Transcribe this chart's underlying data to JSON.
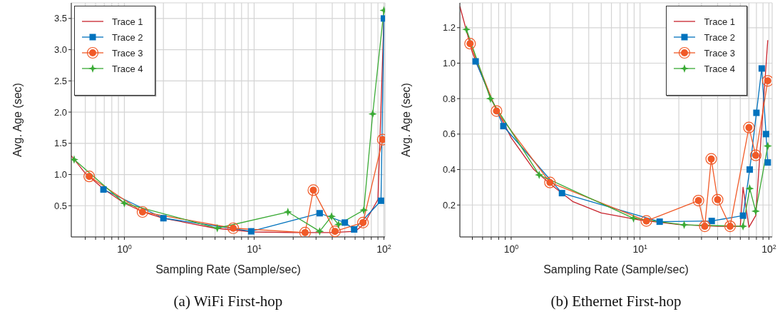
{
  "chart_data": [
    {
      "type": "line",
      "title": "(a) WiFi First-hop",
      "xlabel": "Sampling Rate (Sample/sec)",
      "ylabel": "Avg. Age (sec)",
      "log": "x",
      "grid": true,
      "legend": "top left",
      "xlim": [
        0.39,
        102
      ],
      "ylim": [
        0,
        3.75
      ],
      "xticks": [
        {
          "value": 0.5,
          "label": null
        },
        {
          "value": 0.6,
          "label": null
        },
        {
          "value": 0.7,
          "label": null
        },
        {
          "value": 0.8,
          "label": null
        },
        {
          "value": 0.9,
          "label": null
        },
        {
          "value": 1,
          "label": "10$^{0}$"
        },
        {
          "value": 2,
          "label": null
        },
        {
          "value": 3,
          "label": null
        },
        {
          "value": 4,
          "label": null
        },
        {
          "value": 5,
          "label": null
        },
        {
          "value": 6,
          "label": null
        },
        {
          "value": 7,
          "label": null
        },
        {
          "value": 8,
          "label": null
        },
        {
          "value": 9,
          "label": null
        },
        {
          "value": 10,
          "label": "10$^{1}$"
        },
        {
          "value": 20,
          "label": null
        },
        {
          "value": 30,
          "label": null
        },
        {
          "value": 40,
          "label": null
        },
        {
          "value": 50,
          "label": null
        },
        {
          "value": 60,
          "label": null
        },
        {
          "value": 70,
          "label": null
        },
        {
          "value": 80,
          "label": null
        },
        {
          "value": 90,
          "label": null
        },
        {
          "value": 100,
          "label": "10$^{2}$"
        }
      ],
      "yticks": [
        0.5,
        {
          "value": 1,
          "label": "1.0"
        },
        1.5,
        {
          "value": 2,
          "label": "2.0"
        },
        2.5,
        {
          "value": 3,
          "label": "3.0"
        },
        3.5
      ],
      "series": [
        {
          "name": "Trace 1",
          "color": "#c8232c",
          "marker": "none",
          "x": [
            0.39,
            0.5,
            0.7,
            1,
            1.4,
            2,
            5,
            10,
            20,
            40,
            60,
            70,
            90,
            100
          ],
          "values": [
            1.3,
            1.02,
            0.76,
            0.54,
            0.4,
            0.3,
            0.14,
            0.08,
            0.07,
            0.07,
            0.09,
            0.2,
            0.6,
            3.5
          ]
        },
        {
          "name": "Trace 2",
          "color": "#0072bd",
          "marker": "square",
          "x": [
            0.69,
            2,
            9.5,
            32,
            50,
            59,
            95,
            100
          ],
          "values": [
            0.76,
            0.3,
            0.09,
            0.38,
            0.23,
            0.12,
            0.58,
            3.5
          ]
        },
        {
          "name": "Trace 3",
          "color": "#f05a28",
          "marker": "circle",
          "x": [
            0.536,
            1.38,
            6.9,
            24.7,
            28.6,
            42,
            69,
            98
          ],
          "values": [
            0.97,
            0.4,
            0.14,
            0.07,
            0.75,
            0.09,
            0.23,
            1.56
          ]
        },
        {
          "name": "Trace 4",
          "color": "#3aaa35",
          "marker": "star",
          "x": [
            0.41,
            1,
            5.2,
            18.2,
            32,
            39.5,
            44.7,
            70,
            82,
            100
          ],
          "values": [
            1.24,
            0.54,
            0.14,
            0.4,
            0.09,
            0.33,
            0.2,
            0.43,
            1.97,
            3.63
          ]
        }
      ]
    },
    {
      "type": "line",
      "title": "(b) Ethernet First-hop",
      "xlabel": "Sampling Rate (Sample/sec)",
      "ylabel": "Avg. Age (sec)",
      "log": "x",
      "grid": true,
      "legend": "top right",
      "xlim": [
        0.4,
        106
      ],
      "ylim": [
        0.02,
        1.34
      ],
      "xticks": [
        {
          "value": 0.5,
          "label": null
        },
        {
          "value": 0.6,
          "label": null
        },
        {
          "value": 0.7,
          "label": null
        },
        {
          "value": 0.8,
          "label": null
        },
        {
          "value": 0.9,
          "label": null
        },
        {
          "value": 1,
          "label": "10$^{0}$"
        },
        {
          "value": 2,
          "label": null
        },
        {
          "value": 3,
          "label": null
        },
        {
          "value": 4,
          "label": null
        },
        {
          "value": 5,
          "label": null
        },
        {
          "value": 6,
          "label": null
        },
        {
          "value": 7,
          "label": null
        },
        {
          "value": 8,
          "label": null
        },
        {
          "value": 9,
          "label": null
        },
        {
          "value": 10,
          "label": "10$^{1}$"
        },
        {
          "value": 20,
          "label": null
        },
        {
          "value": 30,
          "label": null
        },
        {
          "value": 40,
          "label": null
        },
        {
          "value": 50,
          "label": null
        },
        {
          "value": 60,
          "label": null
        },
        {
          "value": 70,
          "label": null
        },
        {
          "value": 80,
          "label": null
        },
        {
          "value": 90,
          "label": null
        },
        {
          "value": 100,
          "label": "10$^{2}$"
        }
      ],
      "yticks": [
        0.2,
        0.4,
        0.6,
        0.8,
        {
          "value": 1,
          "label": "1.0"
        },
        1.2
      ],
      "series": [
        {
          "name": "Trace 1",
          "color": "#c8232c",
          "marker": "none",
          "x": [
            0.4,
            0.5,
            0.7,
            1,
            1.5,
            2,
            3,
            5,
            10,
            20,
            40,
            60,
            63,
            70,
            79,
            98
          ],
          "values": [
            1.32,
            1.06,
            0.8,
            0.58,
            0.4,
            0.32,
            0.22,
            0.155,
            0.115,
            0.09,
            0.08,
            0.08,
            0.3,
            0.075,
            0.14,
            1.13
          ]
        },
        {
          "name": "Trace 2",
          "color": "#0072bd",
          "marker": "square",
          "x": [
            0.53,
            0.87,
            2.48,
            14.2,
            36,
            63,
            71,
            80,
            88,
            95,
            98
          ],
          "values": [
            1.01,
            0.645,
            0.267,
            0.106,
            0.11,
            0.14,
            0.4,
            0.72,
            0.97,
            0.6,
            0.44
          ]
        },
        {
          "name": "Trace 3",
          "color": "#f05a28",
          "marker": "circle",
          "x": [
            0.48,
            0.77,
            2,
            11.2,
            28.4,
            31.8,
            35.7,
            40,
            50,
            70,
            79,
            98
          ],
          "values": [
            1.11,
            0.73,
            0.327,
            0.11,
            0.225,
            0.08,
            0.46,
            0.23,
            0.08,
            0.637,
            0.48,
            0.9
          ]
        },
        {
          "name": "Trace 4",
          "color": "#3aaa35",
          "marker": "star",
          "x": [
            0.45,
            0.69,
            1.65,
            8.9,
            22,
            63,
            71,
            79,
            98
          ],
          "values": [
            1.19,
            0.8,
            0.37,
            0.125,
            0.088,
            0.08,
            0.293,
            0.165,
            0.533
          ]
        }
      ]
    }
  ]
}
